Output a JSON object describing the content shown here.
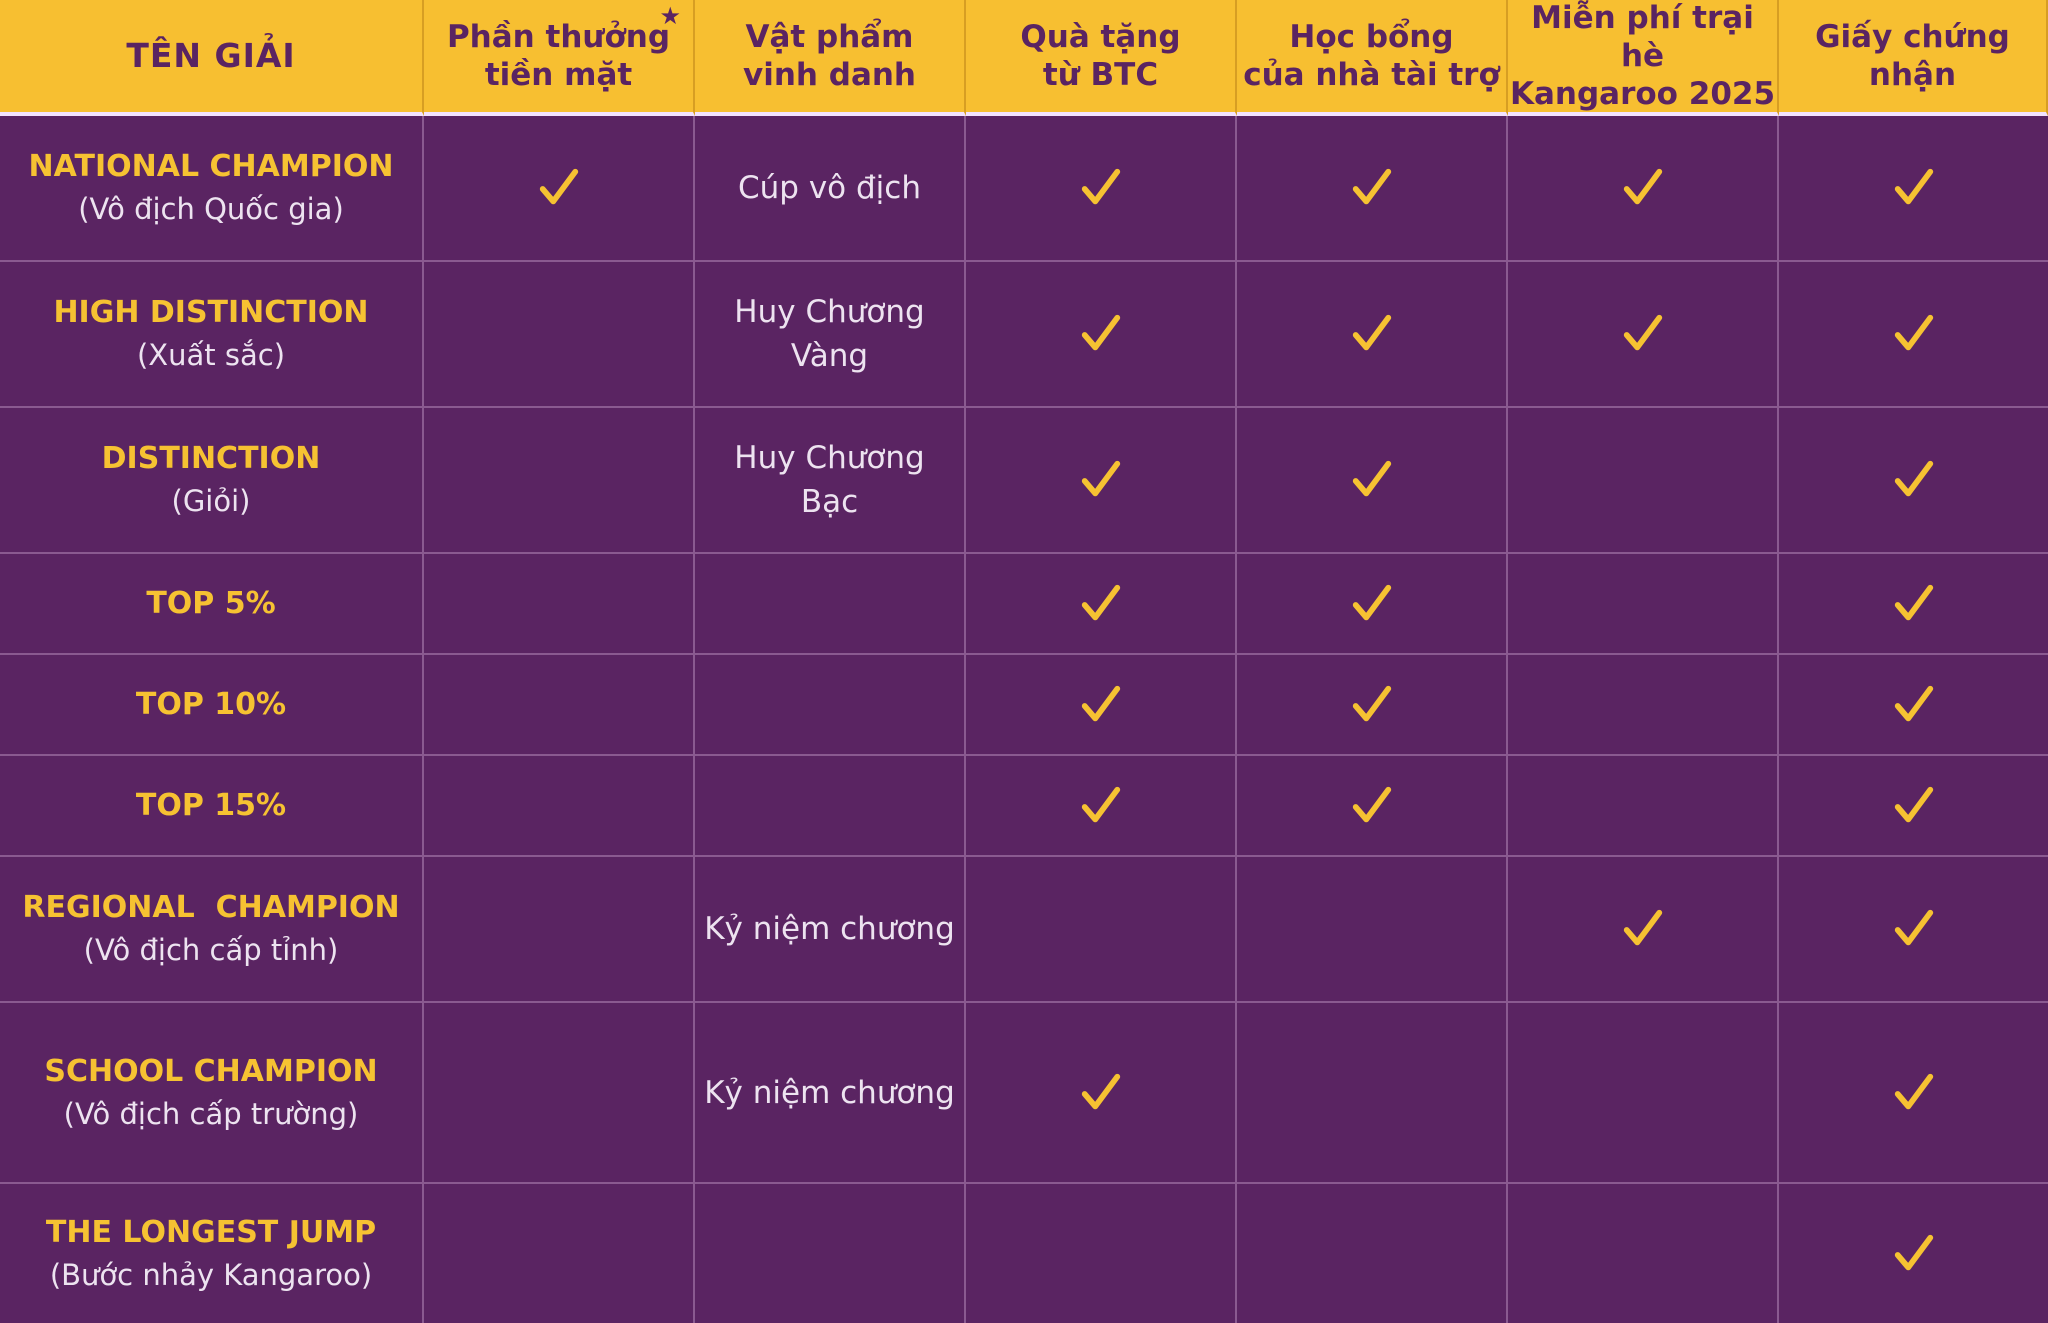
{
  "table": {
    "header": [
      "TÊN GIẢI",
      "Phần thưởng\ntiền mặt",
      "Vật phẩm\nvinh danh",
      "Quà tặng\ntừ BTC",
      "Học bổng\ncủa nhà tài trợ",
      "Miễn phí trại hè\nKangaroo 2025",
      "Giấy chứng nhận"
    ],
    "header_note_mark": "★",
    "rows": [
      {
        "name": "NATIONAL CHAMPION",
        "sub": "(Vô địch Quốc gia)",
        "cash": true,
        "item": "Cúp vô địch",
        "gift": true,
        "scholarship": true,
        "camp": true,
        "certificate": true
      },
      {
        "name": "HIGH DISTINCTION",
        "sub": "(Xuất sắc)",
        "cash": false,
        "item": "Huy Chương\nVàng",
        "gift": true,
        "scholarship": true,
        "camp": true,
        "certificate": true
      },
      {
        "name": "DISTINCTION",
        "sub": "(Giỏi)",
        "cash": false,
        "item": "Huy Chương\nBạc",
        "gift": true,
        "scholarship": true,
        "camp": false,
        "certificate": true
      },
      {
        "name": "TOP 5%",
        "sub": "",
        "cash": false,
        "item": "",
        "gift": true,
        "scholarship": true,
        "camp": false,
        "certificate": true
      },
      {
        "name": "TOP 10%",
        "sub": "",
        "cash": false,
        "item": "",
        "gift": true,
        "scholarship": true,
        "camp": false,
        "certificate": true
      },
      {
        "name": "TOP 15%",
        "sub": "",
        "cash": false,
        "item": "",
        "gift": true,
        "scholarship": true,
        "camp": false,
        "certificate": true
      },
      {
        "name": "REGIONAL  CHAMPION",
        "sub": "(Vô địch cấp tỉnh)",
        "cash": false,
        "item": "Kỷ niệm chương",
        "gift": false,
        "scholarship": false,
        "camp": true,
        "certificate": true
      },
      {
        "name": "SCHOOL CHAMPION",
        "sub": "(Vô địch cấp trường)",
        "cash": false,
        "item": "Kỷ niệm chương",
        "gift": true,
        "scholarship": false,
        "camp": false,
        "certificate": true
      },
      {
        "name": "THE LONGEST JUMP",
        "sub": "(Bước nhảy Kangaroo)",
        "cash": false,
        "item": "",
        "gift": false,
        "scholarship": false,
        "camp": false,
        "certificate": true
      }
    ]
  },
  "colors": {
    "background": "#5a2462",
    "header_bg": "#f7bf31",
    "accent_gold": "#f6c232",
    "header_text": "#5a2462",
    "grid_line": "#8a5a90"
  },
  "icons": {
    "mark": "checkmark-icon",
    "note": "star-icon"
  }
}
